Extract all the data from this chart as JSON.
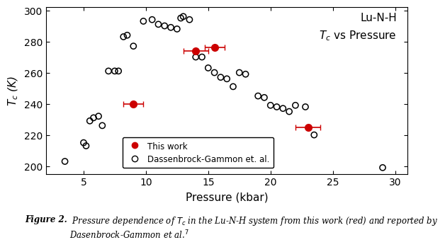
{
  "title_text": "Lu-N-H\n$T_c$ vs Pressure",
  "xlabel": "Pressure (kbar)",
  "ylabel": "$T_c$ (K)",
  "xlim": [
    2,
    31
  ],
  "ylim": [
    195,
    302
  ],
  "xticks": [
    5,
    10,
    15,
    20,
    25,
    30
  ],
  "yticks": [
    200,
    220,
    240,
    260,
    280,
    300
  ],
  "open_circles": {
    "x": [
      3.5,
      5.0,
      5.2,
      5.5,
      5.8,
      6.2,
      6.5,
      7.0,
      7.5,
      7.8,
      8.2,
      8.5,
      9.0,
      9.8,
      10.5,
      11.0,
      11.5,
      12.0,
      12.5,
      12.8,
      13.0,
      13.5,
      14.0,
      14.5,
      15.0,
      15.5,
      16.0,
      16.5,
      17.0,
      17.5,
      18.0,
      19.0,
      19.5,
      20.0,
      20.5,
      21.0,
      21.5,
      22.0,
      22.8,
      23.5,
      29.0
    ],
    "y": [
      203,
      215,
      213,
      229,
      231,
      232,
      226,
      261,
      261,
      261,
      283,
      284,
      277,
      293,
      294,
      291,
      290,
      289,
      288,
      295,
      296,
      294,
      270,
      270,
      263,
      260,
      257,
      256,
      251,
      260,
      259,
      245,
      244,
      239,
      238,
      237,
      235,
      239,
      238,
      220,
      199
    ]
  },
  "this_work": {
    "x": [
      9.0,
      14.0,
      15.5,
      23.0
    ],
    "y": [
      240,
      274,
      276,
      225
    ],
    "xerr": [
      0.8,
      1.0,
      0.8,
      1.0
    ]
  },
  "open_circle_color": "#000000",
  "open_circle_size": 35,
  "this_work_color": "#cc0000",
  "this_work_markersize": 7,
  "background_color": "#ffffff",
  "caption_bold": "Figure 2.",
  "caption_italic": " Pressure dependence of $T_c$ in the Lu-N-H system from this work (red) and reported by\nDasenbrock-Gammon et al.$^7$",
  "legend_this_work": "This work",
  "legend_open": "Dassenbrock-Gammon et. al.",
  "tick_labelsize": 10,
  "axis_labelsize": 11,
  "annot_fontsize": 11
}
